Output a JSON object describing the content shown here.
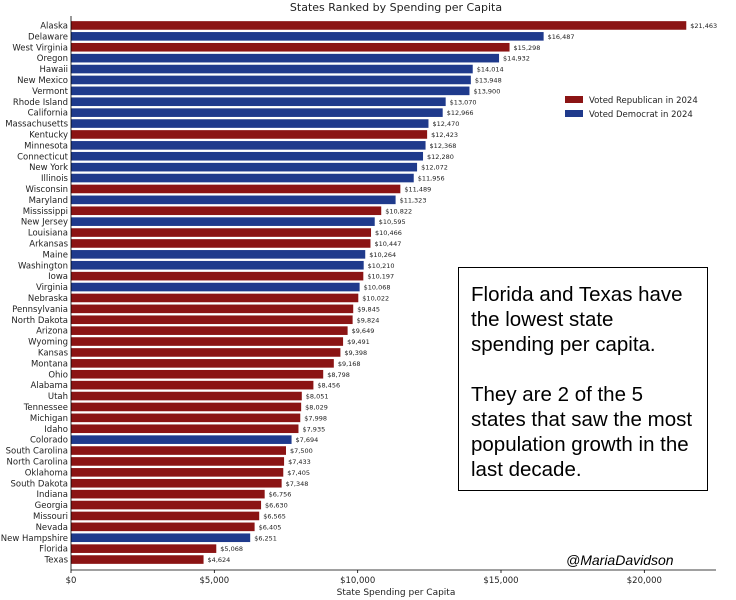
{
  "chart_data": {
    "type": "bar",
    "orientation": "horizontal",
    "title": "States Ranked by Spending per Capita",
    "xlabel": "State Spending per Capita",
    "ylabel": "",
    "xlim": [
      0,
      22500
    ],
    "x_ticks": [
      "$0",
      "$5,000",
      "$10,000",
      "$15,000",
      "$20,000"
    ],
    "grid": false,
    "legend_position": "upper right",
    "colors": {
      "rep": "#8b1414",
      "dem": "#1f3a8c"
    },
    "legend": [
      {
        "key": "rep",
        "label": "Voted Republican in 2024"
      },
      {
        "key": "dem",
        "label": "Voted Democrat in 2024"
      }
    ],
    "bars": [
      {
        "state": "Alaska",
        "value": 21463,
        "label": "$21,463",
        "party": "rep"
      },
      {
        "state": "Delaware",
        "value": 16487,
        "label": "$16,487",
        "party": "dem"
      },
      {
        "state": "West Virginia",
        "value": 15298,
        "label": "$15,298",
        "party": "rep"
      },
      {
        "state": "Oregon",
        "value": 14932,
        "label": "$14,932",
        "party": "dem"
      },
      {
        "state": "Hawaii",
        "value": 14014,
        "label": "$14,014",
        "party": "dem"
      },
      {
        "state": "New Mexico",
        "value": 13948,
        "label": "$13,948",
        "party": "dem"
      },
      {
        "state": "Vermont",
        "value": 13900,
        "label": "$13,900",
        "party": "dem"
      },
      {
        "state": "Rhode Island",
        "value": 13070,
        "label": "$13,070",
        "party": "dem"
      },
      {
        "state": "California",
        "value": 12966,
        "label": "$12,966",
        "party": "dem"
      },
      {
        "state": "Massachusetts",
        "value": 12470,
        "label": "$12,470",
        "party": "dem"
      },
      {
        "state": "Kentucky",
        "value": 12423,
        "label": "$12,423",
        "party": "rep"
      },
      {
        "state": "Minnesota",
        "value": 12368,
        "label": "$12,368",
        "party": "dem"
      },
      {
        "state": "Connecticut",
        "value": 12280,
        "label": "$12,280",
        "party": "dem"
      },
      {
        "state": "New York",
        "value": 12072,
        "label": "$12,072",
        "party": "dem"
      },
      {
        "state": "Illinois",
        "value": 11956,
        "label": "$11,956",
        "party": "dem"
      },
      {
        "state": "Wisconsin",
        "value": 11489,
        "label": "$11,489",
        "party": "rep"
      },
      {
        "state": "Maryland",
        "value": 11323,
        "label": "$11,323",
        "party": "dem"
      },
      {
        "state": "Mississippi",
        "value": 10822,
        "label": "$10,822",
        "party": "rep"
      },
      {
        "state": "New Jersey",
        "value": 10595,
        "label": "$10,595",
        "party": "dem"
      },
      {
        "state": "Louisiana",
        "value": 10466,
        "label": "$10,466",
        "party": "rep"
      },
      {
        "state": "Arkansas",
        "value": 10447,
        "label": "$10,447",
        "party": "rep"
      },
      {
        "state": "Maine",
        "value": 10264,
        "label": "$10,264",
        "party": "dem"
      },
      {
        "state": "Washington",
        "value": 10210,
        "label": "$10,210",
        "party": "dem"
      },
      {
        "state": "Iowa",
        "value": 10197,
        "label": "$10,197",
        "party": "rep"
      },
      {
        "state": "Virginia",
        "value": 10068,
        "label": "$10,068",
        "party": "dem"
      },
      {
        "state": "Nebraska",
        "value": 10022,
        "label": "$10,022",
        "party": "rep"
      },
      {
        "state": "Pennsylvania",
        "value": 9845,
        "label": "$9,845",
        "party": "rep"
      },
      {
        "state": "North Dakota",
        "value": 9824,
        "label": "$9,824",
        "party": "rep"
      },
      {
        "state": "Arizona",
        "value": 9649,
        "label": "$9,649",
        "party": "rep"
      },
      {
        "state": "Wyoming",
        "value": 9491,
        "label": "$9,491",
        "party": "rep"
      },
      {
        "state": "Kansas",
        "value": 9398,
        "label": "$9,398",
        "party": "rep"
      },
      {
        "state": "Montana",
        "value": 9168,
        "label": "$9,168",
        "party": "rep"
      },
      {
        "state": "Ohio",
        "value": 8798,
        "label": "$8,798",
        "party": "rep"
      },
      {
        "state": "Alabama",
        "value": 8456,
        "label": "$8,456",
        "party": "rep"
      },
      {
        "state": "Utah",
        "value": 8051,
        "label": "$8,051",
        "party": "rep"
      },
      {
        "state": "Tennessee",
        "value": 8029,
        "label": "$8,029",
        "party": "rep"
      },
      {
        "state": "Michigan",
        "value": 7998,
        "label": "$7,998",
        "party": "rep"
      },
      {
        "state": "Idaho",
        "value": 7935,
        "label": "$7,935",
        "party": "rep"
      },
      {
        "state": "Colorado",
        "value": 7694,
        "label": "$7,694",
        "party": "dem"
      },
      {
        "state": "South Carolina",
        "value": 7500,
        "label": "$7,500",
        "party": "rep"
      },
      {
        "state": "North Carolina",
        "value": 7433,
        "label": "$7,433",
        "party": "rep"
      },
      {
        "state": "Oklahoma",
        "value": 7405,
        "label": "$7,405",
        "party": "rep"
      },
      {
        "state": "South Dakota",
        "value": 7348,
        "label": "$7,348",
        "party": "rep"
      },
      {
        "state": "Indiana",
        "value": 6756,
        "label": "$6,756",
        "party": "rep"
      },
      {
        "state": "Georgia",
        "value": 6630,
        "label": "$6,630",
        "party": "rep"
      },
      {
        "state": "Missouri",
        "value": 6565,
        "label": "$6,565",
        "party": "rep"
      },
      {
        "state": "Nevada",
        "value": 6405,
        "label": "$6,405",
        "party": "rep"
      },
      {
        "state": "New Hampshire",
        "value": 6251,
        "label": "$6,251",
        "party": "dem"
      },
      {
        "state": "Florida",
        "value": 5068,
        "label": "$5,068",
        "party": "rep"
      },
      {
        "state": "Texas",
        "value": 4624,
        "label": "$4,624",
        "party": "rep"
      }
    ]
  },
  "annotation": {
    "paragraph_1": "Florida and Texas have the lowest state spending per capita.",
    "paragraph_2": "They are 2 of the 5 states that saw the most population growth in the last decade."
  },
  "credit": "@MariaDavidson"
}
